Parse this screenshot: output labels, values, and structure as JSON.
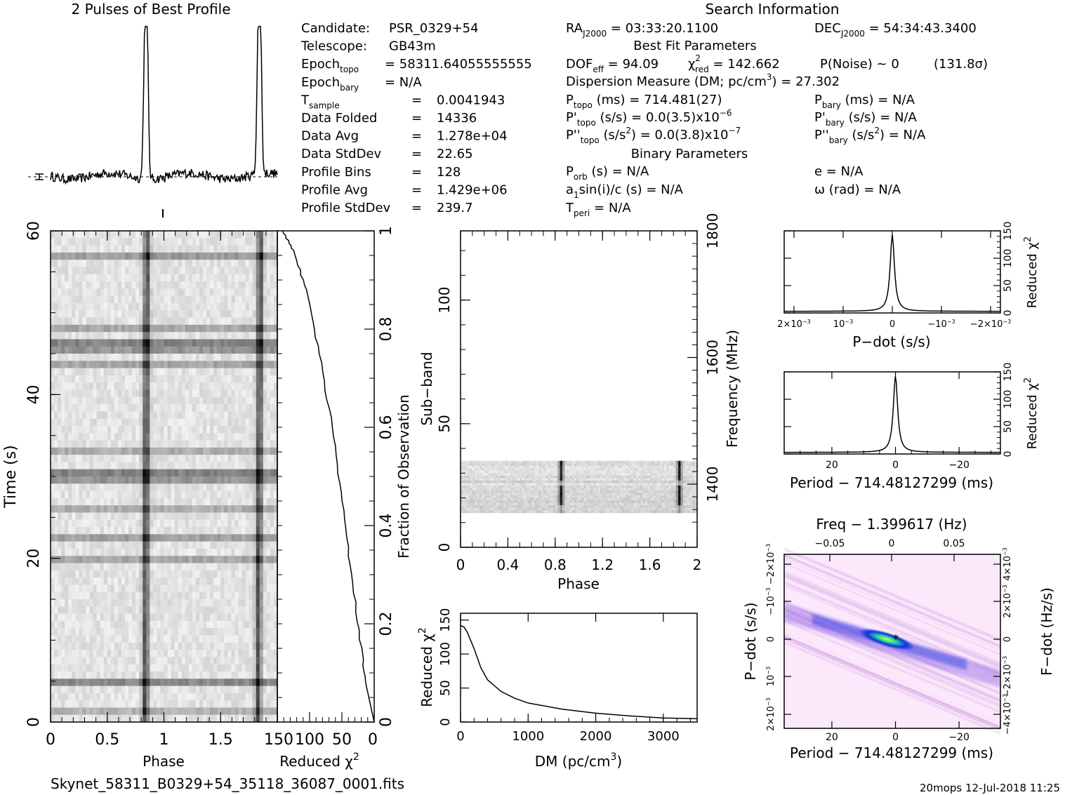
{
  "title_left": "2 Pulses of Best Profile",
  "title_search": "Search Information",
  "info_left": [
    {
      "k": "Candidate:",
      "v": "PSR_0329+54"
    },
    {
      "k": "Telescope:",
      "v": "GB43m"
    },
    {
      "k": "Epoch",
      "sub": "topo",
      "v": "= 58311.64055555555"
    },
    {
      "k": "Epoch",
      "sub": "bary",
      "v": "= N/A"
    },
    {
      "k": "T",
      "sub": "sample",
      "eq": "=",
      "v": "0.0041943"
    },
    {
      "k": "Data Folded",
      "eq": "=",
      "v": "14336"
    },
    {
      "k": "Data Avg",
      "eq": "=",
      "v": "1.278e+04"
    },
    {
      "k": "Data StdDev",
      "eq": "=",
      "v": "22.65"
    },
    {
      "k": "Profile Bins",
      "eq": "=",
      "v": "128"
    },
    {
      "k": "Profile Avg",
      "eq": "=",
      "v": "1.429e+06"
    },
    {
      "k": "Profile StdDev",
      "eq": "=",
      "v": "239.7"
    }
  ],
  "search": {
    "ra": {
      "k": "RA",
      "sub": "J2000",
      "v": "= 03:33:20.1100"
    },
    "dec": {
      "k": "DEC",
      "sub": "J2000",
      "v": "= 54:34:43.3400"
    },
    "best_fit_header": "Best Fit Parameters",
    "dof": {
      "k": "DOF",
      "sub": "eff",
      "v": "= 94.09"
    },
    "chi2": {
      "k": "χ",
      "sup": "2",
      "sub": "red",
      "v": "= 142.662"
    },
    "pnoise": "P(Noise) ~ 0",
    "sigma": "(131.8σ)",
    "dm": {
      "k": "Dispersion Measure (DM; pc/cm",
      "sup": "3",
      "v": ") = 27.302"
    },
    "ptopo": {
      "k": "P",
      "sub": "topo",
      "v": "(ms) =  714.481(27)"
    },
    "pbary": {
      "k": "P",
      "sub": "bary",
      "v": "(ms) = N/A"
    },
    "pdtopo": {
      "k": "P'",
      "sub": "topo",
      "v": "(s/s) = 0.0(3.5)x10",
      "sup": "−6"
    },
    "pdbary": {
      "k": "P'",
      "sub": "bary",
      "v": "(s/s) = N/A"
    },
    "pddtopo": {
      "k": "P''",
      "sub": "topo",
      "v": "(s/s",
      "sup": "2",
      "v2": ") = 0.0(3.8)x10",
      "sup2": "−7"
    },
    "pddbary": {
      "k": "P''",
      "sub": "bary",
      "v": "(s/s",
      "sup": "2",
      "v2": ") = N/A"
    },
    "binary_header": "Binary Parameters",
    "porb": {
      "k": "P",
      "sub": "orb",
      "v": "(s) = N/A"
    },
    "ecc": "e = N/A",
    "asini": {
      "k": "a",
      "sub": "1",
      "v": "sin(i)/c (s) = N/A"
    },
    "omega": "ω (rad) = N/A",
    "tperi": {
      "k": "T",
      "sub": "peri",
      "v": "= N/A"
    }
  },
  "footer_left": "Skynet_58311_B0329+54_35118_36087_0001.fits",
  "footer_right": "20mops 12-Jul-2018 11:25",
  "chart_data": [
    {
      "type": "line",
      "name": "profile",
      "description_visible": "2 Pulses of Best Profile",
      "x_range": [
        0,
        2
      ],
      "pulse_phases": [
        0.85,
        1.85
      ],
      "pulse_peak": 1.0,
      "baseline": 0.05
    },
    {
      "type": "heatmap",
      "name": "time-phase",
      "xlabel": "Phase",
      "ylabel": "Time (s)",
      "xlim": [
        0,
        2
      ],
      "ylim": [
        0,
        60
      ],
      "xticks": [
        "0",
        "0.5",
        "1",
        "1.5"
      ],
      "yticks": [
        "0",
        "20",
        "40",
        "60"
      ],
      "pulse_phases": [
        0.85,
        1.85
      ]
    },
    {
      "type": "line",
      "name": "chi2-vs-fraction",
      "xlabel": "Reduced χ",
      "xlabel_sup": "2",
      "ylabel": "Fraction of Observation",
      "xlim": [
        150,
        0
      ],
      "ylim": [
        0,
        1
      ],
      "xticks": [
        "150",
        "100",
        "50",
        "0"
      ],
      "yticks": [
        "0",
        "0.2",
        "0.4",
        "0.6",
        "0.8",
        "1"
      ],
      "points": [
        [
          0,
          0
        ],
        [
          10,
          0.06
        ],
        [
          20,
          0.15
        ],
        [
          35,
          0.3
        ],
        [
          50,
          0.45
        ],
        [
          65,
          0.6
        ],
        [
          85,
          0.75
        ],
        [
          105,
          0.88
        ],
        [
          125,
          0.96
        ],
        [
          142,
          1.0
        ]
      ]
    },
    {
      "type": "heatmap",
      "name": "subband-phase",
      "xlabel": "Phase",
      "ylabel": "Sub−band",
      "ylabel_right": "Frequency (MHz)",
      "xlim": [
        0,
        2
      ],
      "ylim": [
        0,
        128
      ],
      "xticks": [
        "0",
        "0.4",
        "0.8",
        "1.2",
        "1.6",
        "2"
      ],
      "yticks": [
        "0",
        "50",
        "100"
      ],
      "freq_ticks": [
        "1400",
        "1600",
        "1800"
      ],
      "data_subband_range": [
        14,
        35
      ],
      "pulse_phases": [
        0.85,
        1.85
      ]
    },
    {
      "type": "line",
      "name": "chi2-vs-dm",
      "xlabel": "DM (pc/cm",
      "xlabel_sup": "3",
      "ylabel": "Reduced χ",
      "ylabel_sup": "2",
      "xlim": [
        0,
        3500
      ],
      "ylim": [
        0,
        160
      ],
      "xticks": [
        "0",
        "1000",
        "2000",
        "3000"
      ],
      "yticks": [
        "0",
        "50",
        "100",
        "150"
      ],
      "points": [
        [
          0,
          142
        ],
        [
          50,
          140
        ],
        [
          100,
          132
        ],
        [
          200,
          108
        ],
        [
          300,
          80
        ],
        [
          400,
          62
        ],
        [
          600,
          45
        ],
        [
          800,
          35
        ],
        [
          1000,
          28
        ],
        [
          1500,
          19
        ],
        [
          2000,
          13
        ],
        [
          2500,
          9
        ],
        [
          3000,
          6
        ],
        [
          3500,
          5
        ]
      ]
    },
    {
      "type": "line",
      "name": "chi2-vs-pdot",
      "xlabel": "P−dot (s/s)",
      "ylabel": "Reduced χ",
      "ylabel_sup": "2",
      "xlim": [
        0.0022,
        -0.0022
      ],
      "ylim": [
        0,
        150
      ],
      "xticks": [
        {
          "v": 0.002,
          "label": "2×10",
          "sup": "−3"
        },
        {
          "v": 0.001,
          "label": "10",
          "sup": "−3"
        },
        {
          "v": 0,
          "label": "0"
        },
        {
          "v": -0.001,
          "label": "−10",
          "sup": "−3"
        },
        {
          "v": -0.002,
          "label": "−2×10",
          "sup": "−3"
        }
      ],
      "yticks": [
        "0",
        "50",
        "100",
        "150"
      ],
      "peak": 142.7
    },
    {
      "type": "line",
      "name": "chi2-vs-period",
      "xlabel": "Period − 714.48127299 (ms)",
      "ylabel": "Reduced χ",
      "ylabel_sup": "2",
      "xlim": [
        35,
        -33
      ],
      "ylim": [
        0,
        150
      ],
      "xticks": [
        "20",
        "0",
        "−20"
      ],
      "yticks": [
        "0",
        "50",
        "100",
        "150"
      ],
      "peak": 142.7
    },
    {
      "type": "heatmap",
      "name": "pdot-period",
      "title_top": "Freq − 1.399617 (Hz)",
      "xlabel": "Period − 714.48127299 (ms)",
      "ylabel": "P−dot (s/s)",
      "ylabel_right": "F−dot (Hz/s)",
      "xticks": [
        "20",
        "0",
        "−20"
      ],
      "top_ticks": [
        "−0.05",
        "0",
        "0.05"
      ],
      "yticks_left": [
        {
          "label": "2×10",
          "sup": "−3"
        },
        {
          "label": "10",
          "sup": "−3"
        },
        {
          "label": "0"
        },
        {
          "label": "−10",
          "sup": "−3"
        },
        {
          "label": "−2×10",
          "sup": "−3"
        }
      ],
      "yticks_right": [
        {
          "label": "−4×10",
          "sup": "−3"
        },
        {
          "label": "−2×10",
          "sup": "−3"
        },
        {
          "label": "0"
        },
        {
          "label": "2×10",
          "sup": "−3"
        },
        {
          "label": "4×10",
          "sup": "−3"
        }
      ]
    }
  ]
}
